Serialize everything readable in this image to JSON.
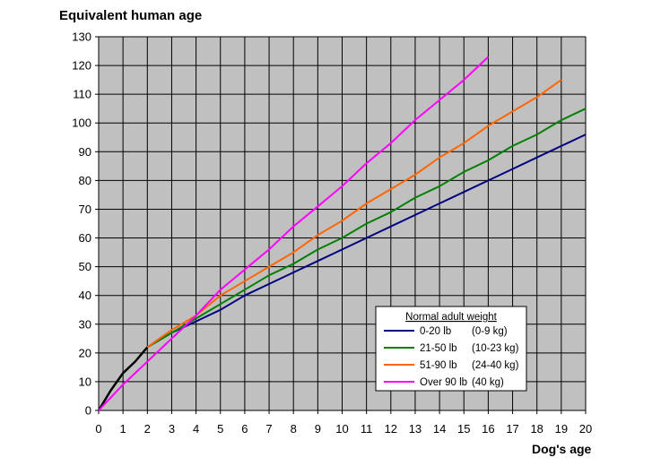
{
  "chart_data": {
    "type": "line",
    "title": "",
    "ylabel": "Equivalent human age",
    "xlabel": "Dog's age",
    "xlim": [
      0,
      20
    ],
    "ylim": [
      0,
      130
    ],
    "xticks": [
      "0",
      "1",
      "2",
      "3",
      "4",
      "5",
      "6",
      "7",
      "8",
      "9",
      "10",
      "11",
      "12",
      "13",
      "14",
      "15",
      "16",
      "17",
      "18",
      "19",
      "20"
    ],
    "yticks": [
      "0",
      "10",
      "20",
      "30",
      "40",
      "50",
      "60",
      "70",
      "80",
      "90",
      "100",
      "110",
      "120",
      "130"
    ],
    "grid": true,
    "plot_background": "#c0c0c0",
    "legend": {
      "title": "Normal adult weight",
      "placement": "lower-right",
      "entries": [
        {
          "weight_lb": "0-20 lb",
          "weight_kg": "(0-9 kg)",
          "color": "#000080"
        },
        {
          "weight_lb": "21-50 lb",
          "weight_kg": "(10-23 kg)",
          "color": "#008000"
        },
        {
          "weight_lb": "51-90 lb",
          "weight_kg": "(24-40 kg)",
          "color": "#ff6600"
        },
        {
          "weight_lb": "Over 90 lb",
          "weight_kg": "(40 kg)",
          "color": "#ff00ff"
        }
      ]
    },
    "series": [
      {
        "color": "#000000",
        "x": [
          0,
          0.5,
          1,
          1.5,
          2
        ],
        "y": [
          0,
          7,
          13,
          17,
          22
        ]
      },
      {
        "color": "#000080",
        "x": [
          2,
          3,
          4,
          5,
          6,
          7,
          8,
          9,
          10,
          11,
          12,
          13,
          14,
          15,
          16,
          17,
          18,
          19,
          20
        ],
        "y": [
          22,
          27,
          31,
          35,
          40,
          44,
          48,
          52,
          56,
          60,
          64,
          68,
          72,
          76,
          80,
          84,
          88,
          92,
          96
        ]
      },
      {
        "color": "#008000",
        "x": [
          2,
          3,
          4,
          5,
          6,
          7,
          8,
          9,
          10,
          11,
          12,
          13,
          14,
          15,
          16,
          17,
          18,
          19,
          20
        ],
        "y": [
          22,
          27,
          32,
          37,
          42,
          47,
          51,
          56,
          60,
          65,
          69,
          74,
          78,
          83,
          87,
          92,
          96,
          101,
          105
        ]
      },
      {
        "color": "#ff6600",
        "x": [
          2,
          3,
          4,
          5,
          6,
          7,
          8,
          9,
          10,
          11,
          12,
          13,
          14,
          15,
          16,
          17,
          18,
          19
        ],
        "y": [
          22,
          28,
          33,
          40,
          45,
          50,
          55,
          61,
          66,
          72,
          77,
          82,
          88,
          93,
          99,
          104,
          109,
          115
        ]
      },
      {
        "color": "#ff00ff",
        "x": [
          0,
          1,
          2,
          3,
          4,
          5,
          6,
          7,
          8,
          9,
          10,
          11,
          12,
          13,
          14,
          15,
          16
        ],
        "y": [
          0,
          9,
          17,
          25,
          33,
          42,
          49,
          56,
          64,
          71,
          78,
          86,
          93,
          101,
          108,
          115,
          123
        ]
      }
    ]
  }
}
